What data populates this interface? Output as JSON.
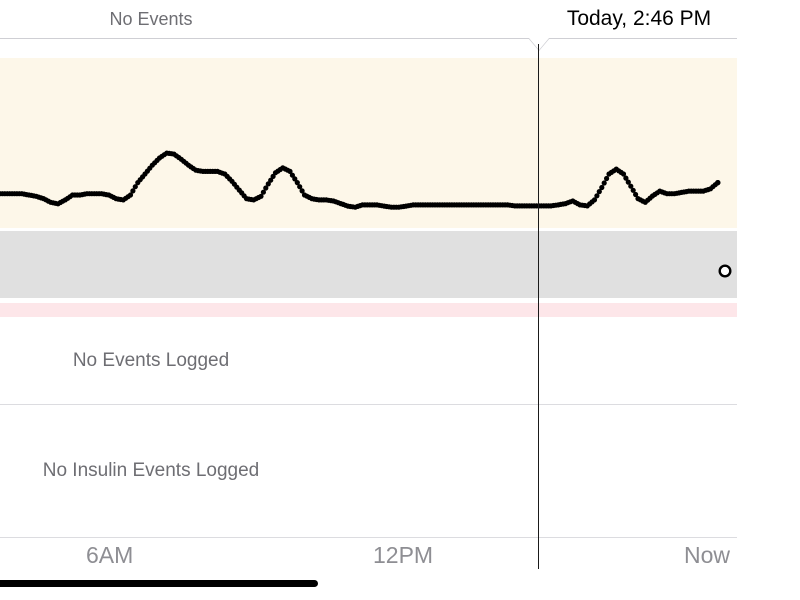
{
  "header": {
    "status": "No Events",
    "timestamp": "Today, 2:46 PM"
  },
  "events": {
    "empty_label": "No Events Logged"
  },
  "insulin": {
    "empty_label": "No Insulin Events Logged"
  },
  "axis": {
    "labels": [
      "6AM",
      "12PM",
      "Now"
    ]
  },
  "colors": {
    "high_zone": "#fdf7e9",
    "target_zone": "#e0e0e0",
    "low_zone": "#fde6e9",
    "readings": "#000000"
  },
  "chart_data": {
    "type": "scatter",
    "x_axis_ticks": [
      "6AM",
      "12PM",
      "Now"
    ],
    "series": [
      {
        "values": [
          [
            0,
            0.476
          ],
          [
            0.01,
            0.476
          ],
          [
            0.02,
            0.476
          ],
          [
            0.03,
            0.476
          ],
          [
            0.04,
            0.471
          ],
          [
            0.05,
            0.466
          ],
          [
            0.06,
            0.457
          ],
          [
            0.07,
            0.443
          ],
          [
            0.08,
            0.437
          ],
          [
            0.09,
            0.452
          ],
          [
            0.1,
            0.471
          ],
          [
            0.11,
            0.471
          ],
          [
            0.12,
            0.476
          ],
          [
            0.13,
            0.476
          ],
          [
            0.14,
            0.476
          ],
          [
            0.15,
            0.471
          ],
          [
            0.16,
            0.457
          ],
          [
            0.17,
            0.452
          ],
          [
            0.18,
            0.471
          ],
          [
            0.19,
            0.519
          ],
          [
            0.2,
            0.552
          ],
          [
            0.21,
            0.586
          ],
          [
            0.22,
            0.614
          ],
          [
            0.23,
            0.633
          ],
          [
            0.24,
            0.629
          ],
          [
            0.25,
            0.609
          ],
          [
            0.26,
            0.586
          ],
          [
            0.27,
            0.567
          ],
          [
            0.28,
            0.562
          ],
          [
            0.29,
            0.562
          ],
          [
            0.3,
            0.562
          ],
          [
            0.31,
            0.552
          ],
          [
            0.32,
            0.524
          ],
          [
            0.33,
            0.49
          ],
          [
            0.34,
            0.457
          ],
          [
            0.35,
            0.452
          ],
          [
            0.36,
            0.466
          ],
          [
            0.37,
            0.514
          ],
          [
            0.38,
            0.557
          ],
          [
            0.39,
            0.576
          ],
          [
            0.4,
            0.562
          ],
          [
            0.41,
            0.519
          ],
          [
            0.42,
            0.471
          ],
          [
            0.43,
            0.457
          ],
          [
            0.44,
            0.452
          ],
          [
            0.45,
            0.452
          ],
          [
            0.46,
            0.448
          ],
          [
            0.47,
            0.438
          ],
          [
            0.48,
            0.428
          ],
          [
            0.49,
            0.424
          ],
          [
            0.5,
            0.433
          ],
          [
            0.51,
            0.433
          ],
          [
            0.52,
            0.433
          ],
          [
            0.53,
            0.428
          ],
          [
            0.54,
            0.424
          ],
          [
            0.55,
            0.424
          ],
          [
            0.56,
            0.428
          ],
          [
            0.57,
            0.433
          ],
          [
            0.58,
            0.433
          ],
          [
            0.59,
            0.433
          ],
          [
            0.6,
            0.433
          ],
          [
            0.61,
            0.433
          ],
          [
            0.62,
            0.433
          ],
          [
            0.63,
            0.433
          ],
          [
            0.64,
            0.433
          ],
          [
            0.65,
            0.433
          ],
          [
            0.66,
            0.433
          ],
          [
            0.67,
            0.433
          ],
          [
            0.68,
            0.433
          ],
          [
            0.69,
            0.433
          ],
          [
            0.7,
            0.433
          ],
          [
            0.71,
            0.429
          ],
          [
            0.72,
            0.429
          ],
          [
            0.73,
            0.429
          ],
          [
            0.74,
            0.429
          ],
          [
            0.75,
            0.429
          ],
          [
            0.76,
            0.429
          ],
          [
            0.77,
            0.433
          ],
          [
            0.78,
            0.438
          ],
          [
            0.79,
            0.448
          ],
          [
            0.8,
            0.433
          ],
          [
            0.81,
            0.429
          ],
          [
            0.82,
            0.452
          ],
          [
            0.83,
            0.5
          ],
          [
            0.84,
            0.552
          ],
          [
            0.85,
            0.571
          ],
          [
            0.86,
            0.552
          ],
          [
            0.87,
            0.505
          ],
          [
            0.88,
            0.457
          ],
          [
            0.89,
            0.443
          ],
          [
            0.9,
            0.467
          ],
          [
            0.91,
            0.486
          ],
          [
            0.92,
            0.476
          ],
          [
            0.93,
            0.476
          ],
          [
            0.94,
            0.481
          ],
          [
            0.95,
            0.486
          ],
          [
            0.96,
            0.486
          ],
          [
            0.97,
            0.486
          ],
          [
            0.98,
            0.495
          ],
          [
            0.99,
            0.519
          ]
        ]
      }
    ]
  }
}
